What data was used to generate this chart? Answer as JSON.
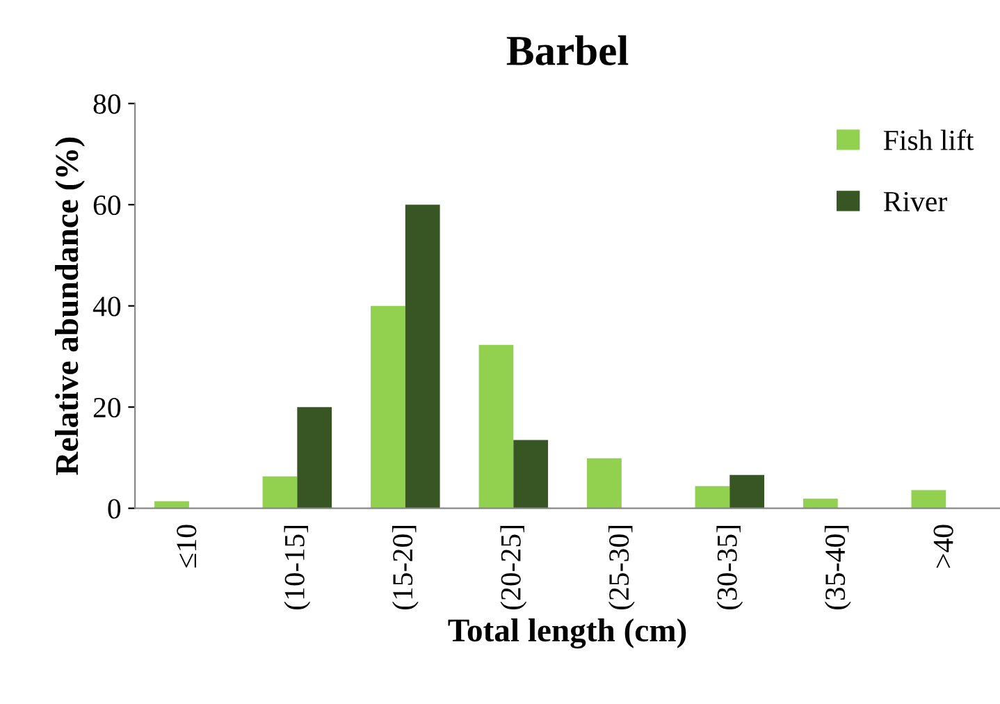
{
  "chart_data": {
    "type": "bar",
    "title": "Barbel",
    "xlabel": "Total length (cm)",
    "ylabel": "Relative abundance (%)",
    "categories": [
      "≤10",
      "(10-15]",
      "(15-20]",
      "(20-25]",
      "(25-30]",
      "(30-35]",
      "(35-40]",
      ">40"
    ],
    "series": [
      {
        "name": "Fish lift",
        "color": "#92d050",
        "values": [
          1.4,
          6.3,
          40,
          32.3,
          9.9,
          4.4,
          1.9,
          3.6
        ]
      },
      {
        "name": "River",
        "color": "#375623",
        "values": [
          0,
          20,
          60,
          13.5,
          0,
          6.6,
          0,
          0
        ]
      }
    ],
    "ylim": [
      0,
      80
    ],
    "yticks": [
      0,
      20,
      40,
      60,
      80
    ],
    "grid": false,
    "legend": "top right"
  }
}
